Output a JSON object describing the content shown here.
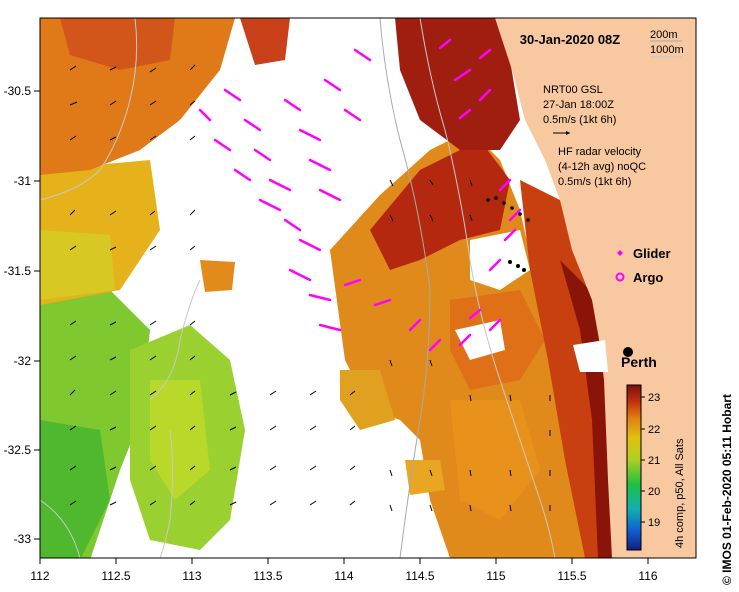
{
  "title": "30-Jan-2020 08Z",
  "depth_contours": {
    "shallow": "200m",
    "deep": "1000m"
  },
  "gsl_legend": {
    "line1": "NRT00 GSL",
    "line2": "27-Jan 18:00Z",
    "line3": "0.5m/s (1kt 6h)"
  },
  "radar_legend": {
    "line1": "HF radar velocity",
    "line2": "(4-12h avg) noQC",
    "line3": "0.5m/s (1kt 6h)"
  },
  "markers": {
    "glider": "Glider",
    "argo": "Argo"
  },
  "city": "Perth",
  "colorbar": {
    "ticks": [
      "23",
      "22",
      "21",
      "20",
      "19"
    ],
    "caption": "4h comp, p50, All Sats",
    "range": [
      18.5,
      23.3
    ]
  },
  "credit": "© IMOS 01-Feb-2020 05:11 Hobart",
  "axes": {
    "x_ticks": [
      "112",
      "112.5",
      "113",
      "113.5",
      "114",
      "114.5",
      "115",
      "115.5",
      "116"
    ],
    "y_ticks": [
      "-30.5",
      "-31",
      "-31.5",
      "-32",
      "-32.5",
      "-33"
    ]
  },
  "colors": {
    "land": "#f8c8a0",
    "radar_arrow": "#ff00ff",
    "glider": "#ff00ff",
    "argo": "#ff00ff",
    "sst_warm": "#8b1a10",
    "sst_cool": "#30b030"
  }
}
